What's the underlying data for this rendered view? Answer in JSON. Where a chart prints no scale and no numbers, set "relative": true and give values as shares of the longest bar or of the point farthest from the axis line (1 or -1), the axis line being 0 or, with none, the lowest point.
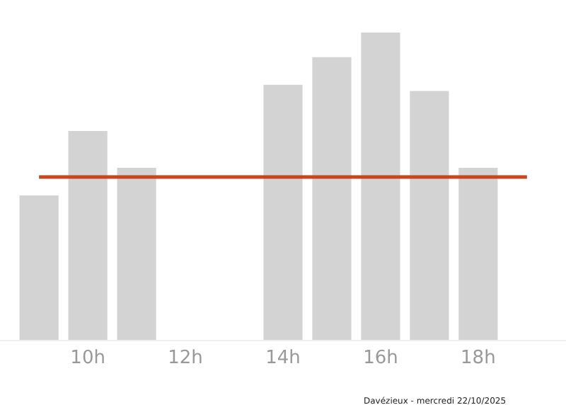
{
  "chart_data": {
    "type": "bar",
    "relative": true,
    "categories": [
      null,
      "10h",
      null,
      "12h",
      null,
      "14h",
      null,
      "16h",
      null,
      "18h",
      null
    ],
    "values": [
      0.47,
      0.68,
      0.56,
      0,
      0,
      0.83,
      0.92,
      1,
      0.81,
      0.56,
      0
    ],
    "color": "#d3d3d3",
    "ref_lines": [
      {
        "axis": "y",
        "value": 0.53,
        "color": "#c8461c"
      }
    ],
    "annotations": [
      "Davézieux - mercredi 22/10/2025"
    ],
    "legend": false
  }
}
